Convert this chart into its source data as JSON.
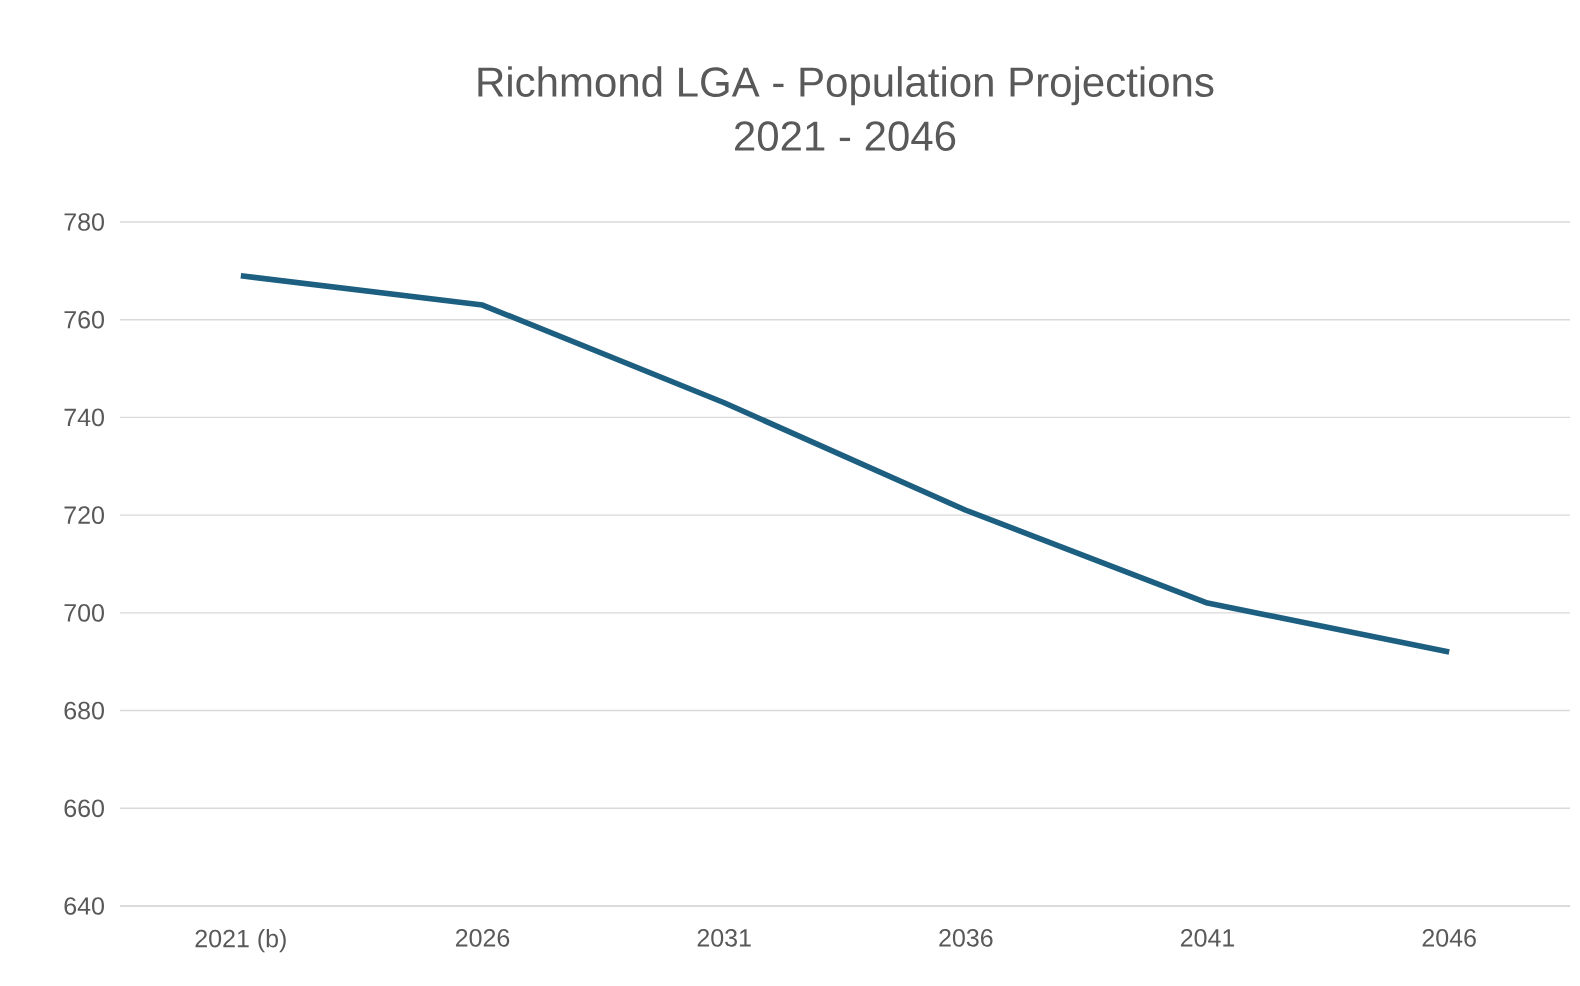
{
  "chart_data": {
    "type": "line",
    "title": "Richmond LGA - Population Projections",
    "subtitle": "2021 - 2046",
    "categories": [
      "2021 (b)",
      "2026",
      "2031",
      "2036",
      "2041",
      "2046"
    ],
    "series": [
      {
        "color": "#1d5f80",
        "values": [
          769,
          763,
          743,
          721,
          702,
          692
        ]
      }
    ],
    "ylim": [
      640,
      780
    ],
    "yticks": [
      640,
      660,
      680,
      700,
      720,
      740,
      760,
      780
    ],
    "grid": "y",
    "legend": false,
    "marker": "none",
    "line_style": "solid"
  }
}
